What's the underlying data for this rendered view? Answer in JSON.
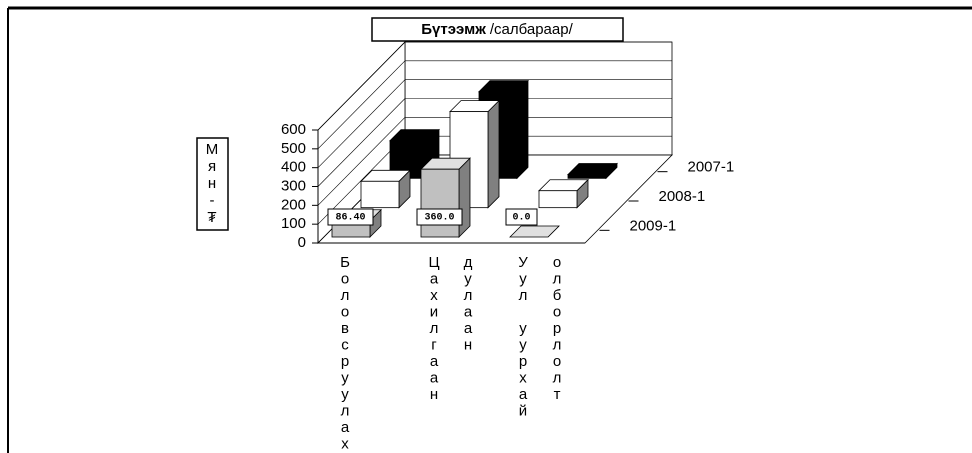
{
  "chart_data": {
    "type": "bar3d",
    "title": {
      "bold": "Бүтээмж",
      "text": "/салбараар/"
    },
    "y_label": "Мян-₮",
    "categories": [
      [
        "Боловсруулах"
      ],
      [
        "Цахилгаан",
        "дулаан"
      ],
      [
        "Уул уурхай",
        "олборлолт"
      ]
    ],
    "series": [
      {
        "name": "2007-1",
        "color": "#000000",
        "values": [
          200,
          460,
          20
        ]
      },
      {
        "name": "2008-1",
        "color": "#ffffff",
        "values": [
          140,
          510,
          90
        ]
      },
      {
        "name": "2009-1",
        "color": "#c0c0c0",
        "values": [
          86.4,
          360,
          0
        ],
        "value_labels": [
          "86.40",
          "360.0",
          "0.0"
        ]
      }
    ],
    "ylim": [
      0,
      600
    ],
    "yticks": [
      0,
      100,
      200,
      300,
      400,
      500,
      600
    ],
    "grid": true
  }
}
